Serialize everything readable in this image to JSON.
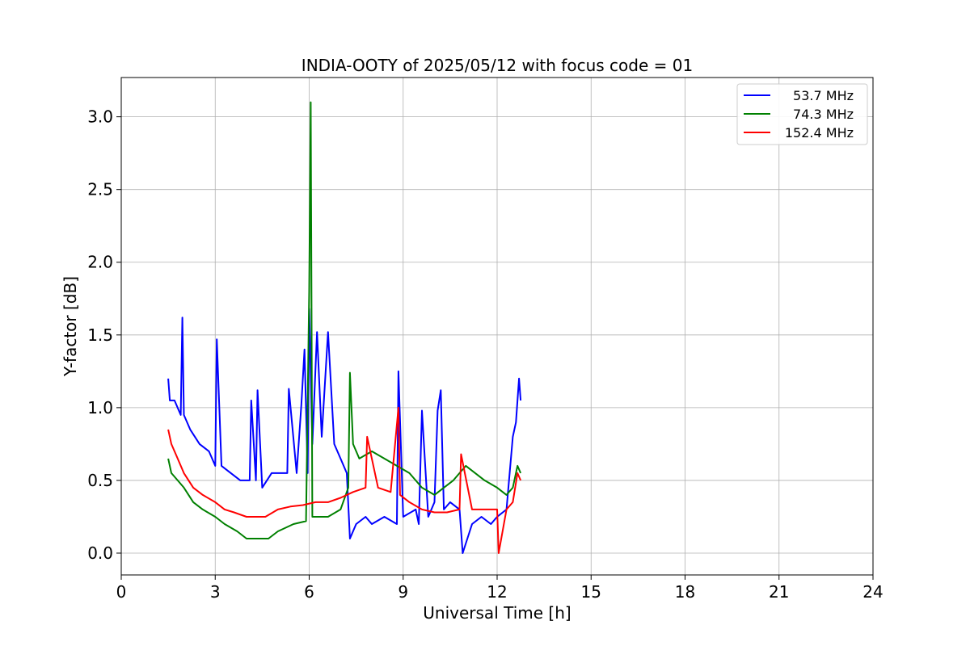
{
  "chart_data": {
    "type": "line",
    "title": "INDIA-OOTY of 2025/05/12 with focus code = 01",
    "xlabel": "Universal Time [h]",
    "ylabel": "Y-factor [dB]",
    "xlim": [
      0,
      24
    ],
    "ylim": [
      -0.15,
      3.27
    ],
    "xticks": [
      0,
      3,
      6,
      9,
      12,
      15,
      18,
      21,
      24
    ],
    "xtick_labels": [
      "0",
      "3",
      "6",
      "9",
      "12",
      "15",
      "18",
      "21",
      "24"
    ],
    "yticks": [
      0.0,
      0.5,
      1.0,
      1.5,
      2.0,
      2.5,
      3.0
    ],
    "ytick_labels": [
      "0.0",
      "0.5",
      "1.0",
      "1.5",
      "2.0",
      "2.5",
      "3.0"
    ],
    "grid": true,
    "legend_position": "top-right",
    "series": [
      {
        "name": "53.7 MHz",
        "color": "#0000ff",
        "x": [
          1.5,
          1.55,
          1.7,
          1.9,
          1.95,
          2.0,
          2.2,
          2.5,
          2.8,
          3.0,
          3.05,
          3.2,
          3.5,
          3.8,
          4.1,
          4.15,
          4.3,
          4.35,
          4.5,
          4.8,
          5.0,
          5.3,
          5.35,
          5.6,
          5.75,
          5.85,
          5.95,
          6.0,
          6.1,
          6.25,
          6.4,
          6.6,
          6.8,
          7.0,
          7.2,
          7.3,
          7.5,
          7.8,
          8.0,
          8.4,
          8.8,
          8.85,
          9.0,
          9.4,
          9.5,
          9.6,
          9.8,
          10.0,
          10.1,
          10.2,
          10.3,
          10.5,
          10.8,
          10.9,
          11.2,
          11.5,
          11.8,
          12.0,
          12.3,
          12.5,
          12.6,
          12.7,
          12.75
        ],
        "y": [
          1.2,
          1.05,
          1.05,
          0.95,
          1.62,
          0.95,
          0.85,
          0.75,
          0.7,
          0.6,
          1.47,
          0.6,
          0.55,
          0.5,
          0.5,
          1.05,
          0.5,
          1.12,
          0.45,
          0.55,
          0.55,
          0.55,
          1.13,
          0.55,
          1.02,
          1.4,
          0.55,
          1.68,
          0.75,
          1.52,
          0.8,
          1.52,
          0.75,
          0.65,
          0.55,
          0.1,
          0.2,
          0.25,
          0.2,
          0.25,
          0.2,
          1.25,
          0.25,
          0.3,
          0.2,
          0.98,
          0.25,
          0.35,
          0.98,
          1.12,
          0.3,
          0.35,
          0.3,
          0.0,
          0.2,
          0.25,
          0.2,
          0.25,
          0.3,
          0.8,
          0.9,
          1.2,
          1.05
        ]
      },
      {
        "name": "74.3 MHz",
        "color": "#008000",
        "x": [
          1.5,
          1.6,
          1.8,
          2.0,
          2.3,
          2.6,
          3.0,
          3.3,
          3.7,
          4.0,
          4.4,
          4.7,
          5.0,
          5.5,
          5.9,
          6.0,
          6.05,
          6.1,
          6.3,
          6.6,
          7.0,
          7.25,
          7.3,
          7.4,
          7.6,
          8.0,
          8.4,
          8.8,
          9.2,
          9.6,
          10.0,
          10.3,
          10.6,
          10.8,
          11.0,
          11.3,
          11.6,
          12.0,
          12.3,
          12.5,
          12.65,
          12.75
        ],
        "y": [
          0.65,
          0.55,
          0.5,
          0.45,
          0.35,
          0.3,
          0.25,
          0.2,
          0.15,
          0.1,
          0.1,
          0.1,
          0.15,
          0.2,
          0.22,
          1.8,
          3.1,
          0.25,
          0.25,
          0.25,
          0.3,
          0.45,
          1.24,
          0.75,
          0.65,
          0.7,
          0.65,
          0.6,
          0.55,
          0.45,
          0.4,
          0.45,
          0.5,
          0.55,
          0.6,
          0.55,
          0.5,
          0.45,
          0.4,
          0.45,
          0.6,
          0.55
        ]
      },
      {
        "name": "152.4 MHz",
        "color": "#ff0000",
        "x": [
          1.5,
          1.6,
          1.8,
          2.0,
          2.3,
          2.6,
          3.0,
          3.3,
          3.6,
          4.0,
          4.3,
          4.6,
          5.0,
          5.4,
          5.8,
          6.2,
          6.6,
          7.0,
          7.4,
          7.8,
          7.85,
          8.2,
          8.6,
          8.85,
          8.9,
          9.2,
          9.6,
          10.0,
          10.4,
          10.8,
          10.85,
          11.2,
          11.6,
          12.0,
          12.05,
          12.3,
          12.5,
          12.65,
          12.75
        ],
        "y": [
          0.85,
          0.75,
          0.65,
          0.55,
          0.45,
          0.4,
          0.35,
          0.3,
          0.28,
          0.25,
          0.25,
          0.25,
          0.3,
          0.32,
          0.33,
          0.35,
          0.35,
          0.38,
          0.42,
          0.45,
          0.8,
          0.45,
          0.42,
          1.0,
          0.4,
          0.35,
          0.3,
          0.28,
          0.28,
          0.3,
          0.68,
          0.3,
          0.3,
          0.3,
          0.0,
          0.3,
          0.35,
          0.55,
          0.5
        ]
      }
    ]
  }
}
